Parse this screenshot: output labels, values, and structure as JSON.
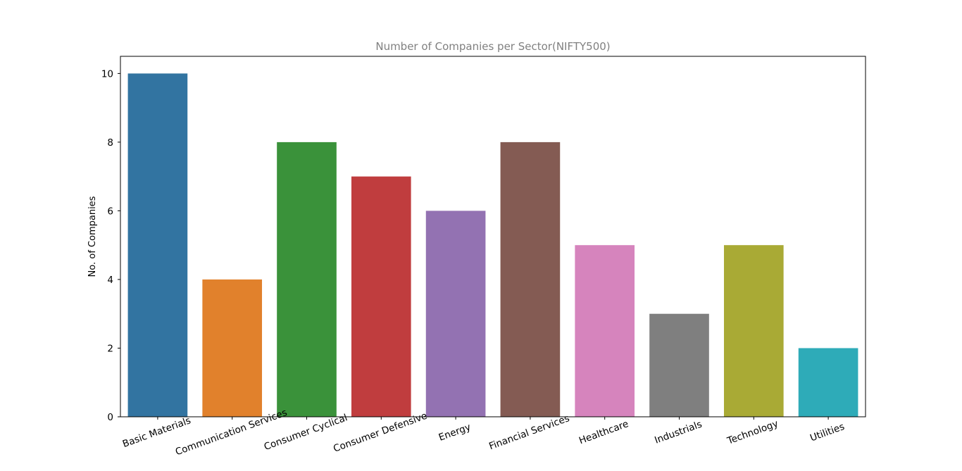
{
  "chart_data": {
    "type": "bar",
    "title": "Number of Companies per Sector(NIFTY500)",
    "xlabel": "",
    "ylabel": "No. of Companies",
    "categories": [
      "Basic Materials",
      "Communication Services",
      "Consumer Cyclical",
      "Consumer Defensive",
      "Energy",
      "Financial Services",
      "Healthcare",
      "Industrials",
      "Technology",
      "Utilities"
    ],
    "values": [
      10,
      4,
      8,
      7,
      6,
      8,
      5,
      3,
      5,
      2
    ],
    "colors": [
      "#3274a1",
      "#e1812c",
      "#3a923a",
      "#c03d3e",
      "#9372b2",
      "#845b53",
      "#d684bd",
      "#7f7f7f",
      "#a9aa35",
      "#2eabb8"
    ],
    "ylim": [
      0,
      10.5
    ],
    "yticks": [
      0,
      2,
      4,
      6,
      8,
      10
    ],
    "grid": false,
    "legend": false
  }
}
